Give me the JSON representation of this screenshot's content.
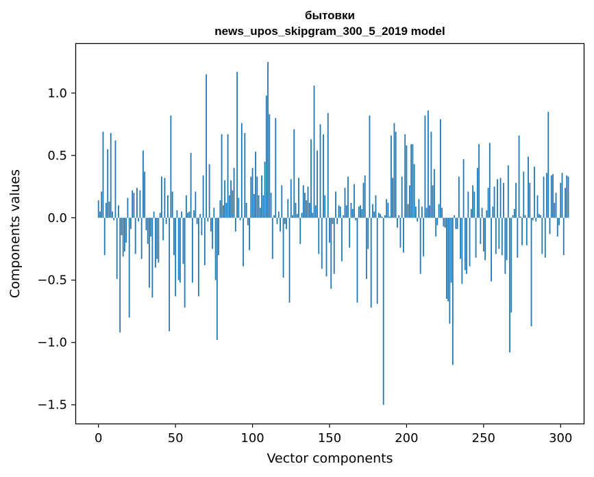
{
  "chart_data": {
    "type": "bar",
    "title": "бытовки",
    "subtitle": "news_upos_skipgram_300_5_2019 model",
    "xlabel": "Vector components",
    "ylabel": "Components values",
    "xlim": [
      -15,
      315
    ],
    "ylim": [
      -1.65,
      1.4
    ],
    "xticks": [
      0,
      50,
      100,
      150,
      200,
      250,
      300
    ],
    "xtick_labels": [
      "0",
      "50",
      "100",
      "150",
      "200",
      "250",
      "300"
    ],
    "yticks": [
      -1.5,
      -1.0,
      -0.5,
      0.0,
      0.5,
      1.0
    ],
    "ytick_labels": [
      "−1.5",
      "−1.0",
      "−0.5",
      "0.0",
      "0.5",
      "1.0"
    ],
    "grid": false,
    "bar_color": "#1f77b4",
    "values": [
      0.14,
      0.05,
      0.21,
      0.69,
      -0.3,
      0.12,
      0.55,
      0.13,
      0.68,
      0.05,
      -0.02,
      0.62,
      -0.49,
      0.1,
      -0.92,
      -0.14,
      -0.31,
      -0.27,
      -0.2,
      0.16,
      -0.8,
      -0.09,
      0.22,
      0.2,
      -0.29,
      0.24,
      -0.03,
      0.22,
      -0.33,
      0.54,
      0.37,
      -0.1,
      -0.21,
      -0.56,
      -0.15,
      -0.64,
      0.05,
      -0.4,
      -0.33,
      -0.36,
      0.04,
      0.33,
      -0.18,
      0.32,
      -0.05,
      0.18,
      -0.91,
      0.82,
      0.21,
      -0.3,
      -0.63,
      0.06,
      -0.5,
      -0.52,
      0.05,
      -0.37,
      -0.72,
      0.18,
      0.04,
      0.05,
      0.52,
      -0.52,
      0.06,
      0.21,
      -0.05,
      -0.63,
      0.03,
      -0.14,
      0.34,
      -0.38,
      1.15,
      -0.03,
      0.43,
      -0.11,
      -0.25,
      0.08,
      -0.5,
      -0.98,
      -0.3,
      0.14,
      0.67,
      0.1,
      0.3,
      0.12,
      0.67,
      0.18,
      0.3,
      0.22,
      0.4,
      -0.11,
      1.17,
      0.16,
      -0.02,
      0.76,
      -0.39,
      0.68,
      0.12,
      -0.06,
      -0.26,
      0.33,
      0.4,
      0.19,
      0.53,
      0.33,
      0.18,
      0.08,
      0.34,
      0.18,
      0.45,
      0.98,
      1.25,
      0.83,
      0.2,
      -0.33,
      0.02,
      0.8,
      -0.05,
      0.05,
      -0.11,
      0.26,
      -0.48,
      -0.05,
      -0.09,
      0.15,
      -0.68,
      0.31,
      0.02,
      0.71,
      0.12,
      0.03,
      0.32,
      -0.21,
      0.04,
      0.26,
      0.2,
      0.14,
      0.25,
      0.12,
      0.63,
      0.04,
      1.06,
      0.1,
      0.54,
      -0.29,
      0.75,
      -0.41,
      0.67,
      0.18,
      -0.47,
      0.84,
      -0.2,
      -0.57,
      -0.05,
      -0.45,
      0.21,
      -0.05,
      0.1,
      0.09,
      -0.35,
      0.02,
      0.24,
      0.1,
      0.33,
      -0.24,
      0.12,
      0.07,
      0.27,
      -0.02,
      -0.68,
      0.09,
      0.1,
      0.07,
      0.28,
      0.34,
      -0.49,
      -0.25,
      0.82,
      -0.72,
      0.11,
      0.05,
      0.18,
      -0.69,
      0.04,
      0.03,
      0.01,
      -1.5,
      0.02,
      0.15,
      0.12,
      0.01,
      0.66,
      0.32,
      0.76,
      0.69,
      -0.08,
      0.02,
      -0.24,
      0.33,
      -0.28,
      0.67,
      0.58,
      0.11,
      0.26,
      0.59,
      0.59,
      0.43,
      0.09,
      -0.03,
      0.15,
      -0.45,
      0.09,
      -0.31,
      0.82,
      0.08,
      0.86,
      0.1,
      0.69,
      0.26,
      0.39,
      -0.15,
      -0.06,
      0.11,
      0.79,
      0.08,
      -0.07,
      -0.08,
      -0.65,
      -0.67,
      -0.85,
      -0.52,
      -1.18,
      0.02,
      -0.09,
      -0.09,
      0.33,
      -0.33,
      -0.53,
      0.47,
      -0.42,
      -0.45,
      0.21,
      -0.39,
      0.07,
      0.26,
      0.21,
      -0.32,
      0.4,
      0.59,
      -0.21,
      0.08,
      -0.27,
      -0.34,
      0.06,
      0.24,
      0.6,
      -0.51,
      0.09,
      0.25,
      -0.29,
      0.31,
      -0.25,
      0.32,
      -0.3,
      0.28,
      -0.45,
      -0.34,
      0.42,
      -1.08,
      -0.76,
      0.02,
      0.07,
      0.28,
      -0.32,
      0.66,
      0.01,
      -0.22,
      0.37,
      0.02,
      -0.22,
      0.49,
      0.28,
      -0.87,
      -0.02,
      0.41,
      -0.03,
      0.18,
      0.03,
      0.02,
      -0.29,
      0.33,
      -0.32,
      0.36,
      0.85,
      -0.13,
      0.34,
      0.35,
      0.12,
      0.2,
      -0.15,
      -0.06,
      0.28,
      0.36,
      -0.3,
      0.24,
      0.34,
      0.33
    ]
  }
}
